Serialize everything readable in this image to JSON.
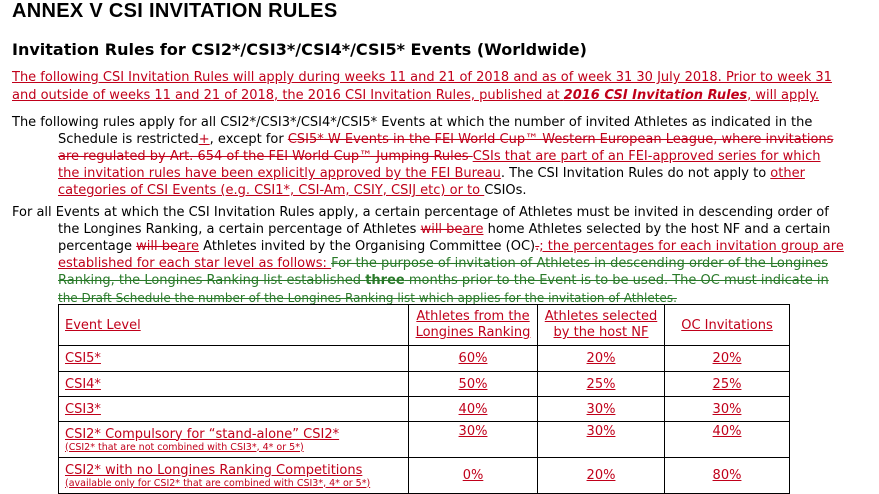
{
  "title": "ANNEX V   CSI INVITATION RULES",
  "subtitle": "Invitation Rules for CSI2*/CSI3*/CSI4*/CSI5* Events (Worldwide)",
  "para1": {
    "l1": "The following CSI Invitation Rules will apply during weeks 11 and 21 of 2018 and as of week 31 30 July 2018. Prior to week 31",
    "l2_a": "and outside of weeks 11 and 21 of 2018, the 2016 CSI Invitation Rules, published at ",
    "l2_link": "2016 CSI Invitation Rules",
    "l2_b": ", will apply."
  },
  "para2": {
    "l1": "The following rules apply for all CSI2*/CSI3*/CSI4*/CSI5* Events at which the number of invited Athletes as indicated in the",
    "l2_a": "Schedule is restricted",
    "l2_plus": "+",
    "l2_b": ", except for ",
    "l2_strike": "CSI5*-W Events in the FEI World Cup™ Western European League, where invitations",
    "l3_strike": "are regulated by Art. 654 of the FEI World Cup™ Jumping Rules ",
    "l3_ins": "CSIs that are part of an FEI-approved series for which",
    "l4_ins": "the invitation rules have been explicitly approved by the FEI Bureau",
    "l4_b": ". The CSI Invitation Rules do not apply to ",
    "l4_other": "other",
    "l5_ins": "categories of CSI Events (e.g. CSI1*, CSI-Am, CSIY, CSIJ etc) or to ",
    "l5_b": "CSIOs."
  },
  "para3": {
    "l1": "For all Events at which the CSI Invitation Rules apply, a certain percentage of Athletes must be invited in descending order of",
    "l2_a": "the Longines Ranking, a certain percentage of Athletes ",
    "l2_s1": "will be",
    "l2_i1": "are",
    "l2_b": " home Athletes selected by the host NF and a certain",
    "l3_a": "percentage ",
    "l3_s1": "will be",
    "l3_i1": "are",
    "l3_b": " Athletes invited by the Organising Committee (OC)",
    "l3_s2": ".",
    "l3_ins": "; the percentages for each invitation group are",
    "l4_ins": "established for each star level as follows: ",
    "l4_g": "For the purpose of invitation of Athletes in descending order of the Longines",
    "l5_g_a": "Ranking, the Longines Ranking list established ",
    "l5_g_three": "three",
    "l5_g_b": " months prior to the Event is to be used. The OC must indicate in",
    "l6_g": "the Draft Schedule the number of the Longines Ranking list which applies for the invitation of Athletes."
  },
  "table": {
    "headers": [
      "Event Level",
      "Athletes from the Longines Ranking",
      "Athletes selected by the host NF",
      "OC Invitations"
    ],
    "h1_l1": "Athletes from the",
    "h1_l2": "Longines Ranking",
    "h2_l1": "Athletes selected",
    "h2_l2": "by the host NF",
    "rows": [
      {
        "level": "CSI5*",
        "note": "",
        "ranking": "60%",
        "nf": "20%",
        "oc": "20%"
      },
      {
        "level": "CSI4*",
        "note": "",
        "ranking": "50%",
        "nf": "25%",
        "oc": "25%"
      },
      {
        "level": "CSI3*",
        "note": "",
        "ranking": "40%",
        "nf": "30%",
        "oc": "30%"
      },
      {
        "level": "CSI2* Compulsory for “stand-alone” CSI2*",
        "note": "(CSI2* that are not combined with CSI3*, 4* or 5*)",
        "ranking": "30%",
        "nf": "30%",
        "oc": "40%"
      },
      {
        "level": "CSI2* with no Longines Ranking Competitions",
        "note": "(available only for CSI2* that are combined with CSI3*, 4* or 5*)",
        "ranking": "0%",
        "nf": "20%",
        "oc": "80%"
      }
    ]
  },
  "colors": {
    "insert": "#c0001a",
    "moved": "#2a7a2a",
    "text": "#000000"
  }
}
